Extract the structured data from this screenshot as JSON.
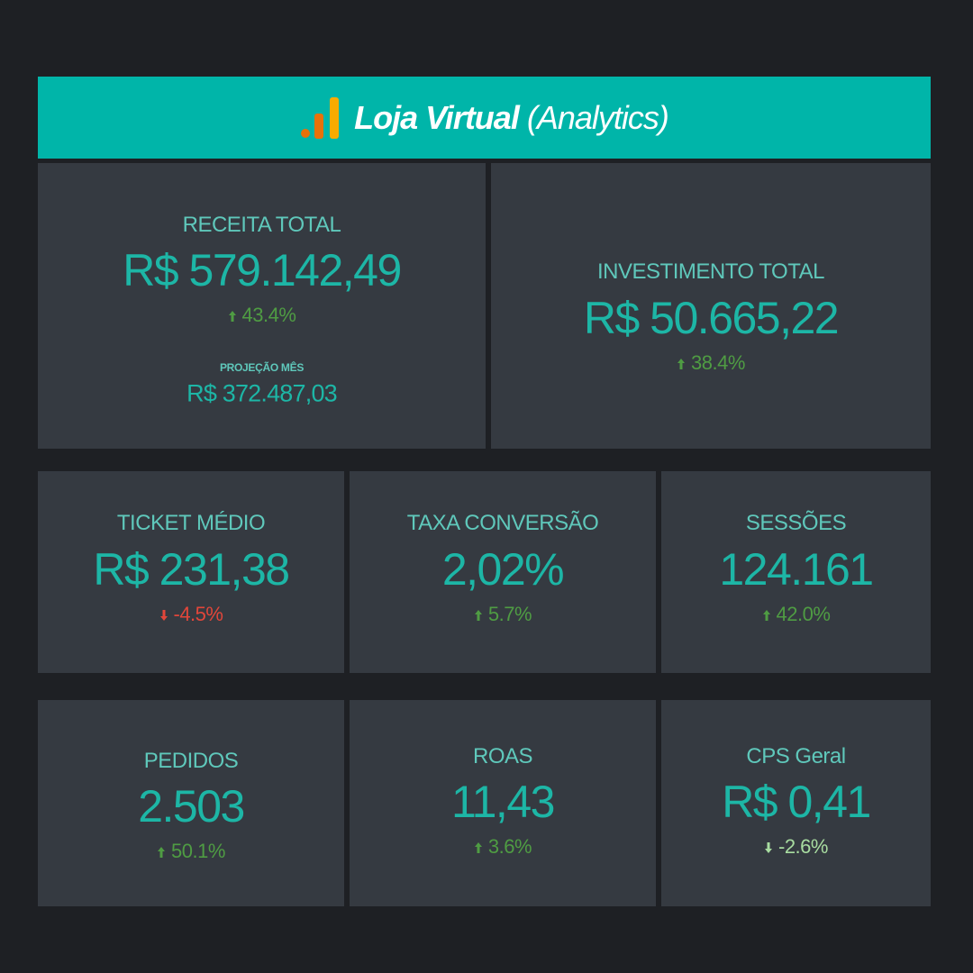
{
  "header": {
    "title": "Loja Virtual",
    "subtitle": "(Analytics)"
  },
  "cards": [
    {
      "label": "RECEITA TOTAL",
      "value": "R$ 579.142,49",
      "change": "43.4%",
      "change_color": "#4f9c43",
      "projection_label": "PROJEÇÃO MÊS",
      "projection_value": "R$ 372.487,03"
    },
    {
      "label": "INVESTIMENTO TOTAL",
      "value": "R$ 50.665,22",
      "change": "38.4%",
      "change_color": "#4f9c43"
    },
    {
      "label": "TICKET MÉDIO",
      "value": "R$ 231,38",
      "change": "-4.5%",
      "change_color": "#e2463a"
    },
    {
      "label": "TAXA CONVERSÃO",
      "value": "2,02%",
      "change": "5.7%",
      "change_color": "#4f9c43"
    },
    {
      "label": "SESSÕES",
      "value": "124.161",
      "change": "42.0%",
      "change_color": "#4f9c43"
    },
    {
      "label": "PEDIDOS",
      "value": "2.503",
      "change": "50.1%",
      "change_color": "#4f9c43"
    },
    {
      "label": "ROAS",
      "value": "11,43",
      "change": "3.6%",
      "change_color": "#4f9c43"
    },
    {
      "label": "CPS Geral",
      "value": "R$ 0,41",
      "change": "-2.6%",
      "change_color": "#a8dca0"
    }
  ]
}
